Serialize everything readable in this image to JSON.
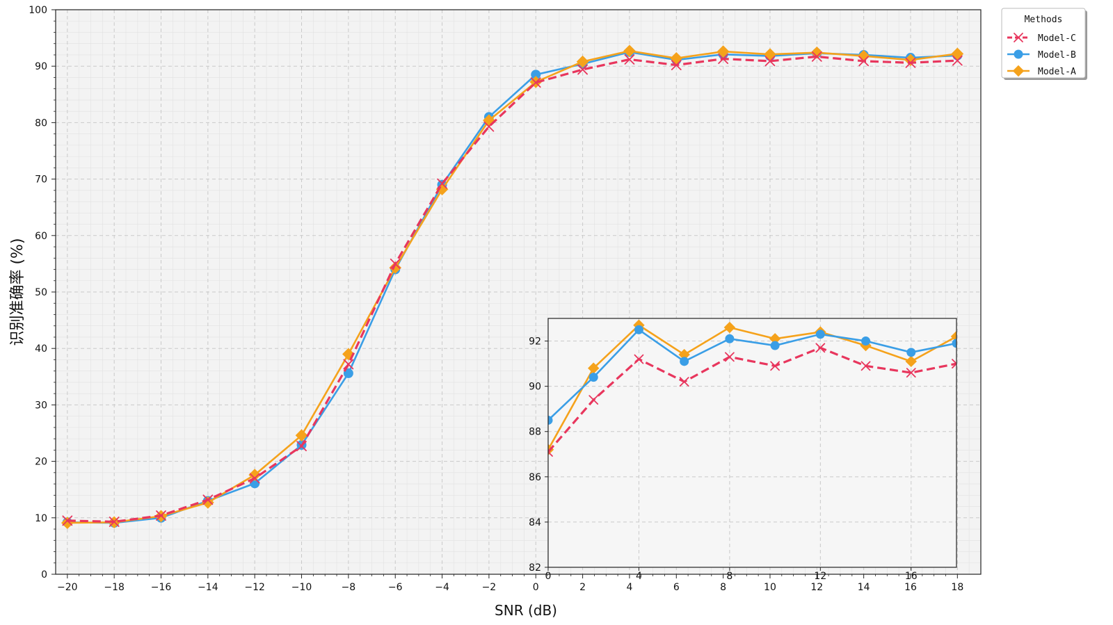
{
  "chart_data": {
    "type": "line",
    "xlabel": "SNR (dB)",
    "ylabel": "识别准确率 (%)",
    "xlim": [
      -20.5,
      19
    ],
    "ylim": [
      0,
      100
    ],
    "x": [
      -20,
      -18,
      -16,
      -14,
      -12,
      -10,
      -8,
      -6,
      -4,
      -2,
      0,
      2,
      4,
      6,
      8,
      10,
      12,
      14,
      16,
      18
    ],
    "x_ticks": [
      -20,
      -18,
      -16,
      -14,
      -12,
      -10,
      -8,
      -6,
      -4,
      -2,
      0,
      2,
      4,
      6,
      8,
      10,
      12,
      14,
      16,
      18
    ],
    "y_ticks": [
      0,
      10,
      20,
      30,
      40,
      50,
      60,
      70,
      80,
      90,
      100
    ],
    "grid": true,
    "legend": {
      "title": "Methods",
      "placement": "outside-top-right"
    },
    "series": [
      {
        "name": "Model-C",
        "color": "#e8365d",
        "line": "dashed",
        "marker": "x",
        "values": [
          9.5,
          9.3,
          10.4,
          13.2,
          17.0,
          22.7,
          37.2,
          55.0,
          69.2,
          79.3,
          87.1,
          89.4,
          91.2,
          90.2,
          91.3,
          90.9,
          91.7,
          90.9,
          90.6,
          91.0
        ]
      },
      {
        "name": "Model-B",
        "color": "#3a9ee6",
        "line": "solid",
        "marker": "circle",
        "values": [
          9.2,
          9.1,
          10.0,
          13.0,
          16.1,
          22.9,
          35.6,
          54.0,
          69.0,
          81.0,
          88.5,
          90.4,
          92.5,
          91.1,
          92.1,
          91.8,
          92.3,
          92.0,
          91.5,
          91.9
        ]
      },
      {
        "name": "Model-A",
        "color": "#f5a21b",
        "line": "solid",
        "marker": "diamond",
        "values": [
          9.1,
          9.2,
          10.3,
          12.7,
          17.6,
          24.6,
          39.0,
          54.3,
          68.2,
          80.4,
          87.2,
          90.8,
          92.7,
          91.4,
          92.6,
          92.1,
          92.4,
          91.8,
          91.1,
          92.2
        ]
      }
    ],
    "inset": {
      "x": [
        0,
        2,
        4,
        6,
        8,
        10,
        12,
        14,
        16,
        18
      ],
      "xlim": [
        0,
        18
      ],
      "ylim": [
        82,
        93
      ],
      "y_ticks": [
        82,
        84,
        86,
        88,
        90,
        92
      ],
      "x_ticks": [
        0,
        4,
        8,
        12,
        16
      ],
      "grid": true
    }
  }
}
